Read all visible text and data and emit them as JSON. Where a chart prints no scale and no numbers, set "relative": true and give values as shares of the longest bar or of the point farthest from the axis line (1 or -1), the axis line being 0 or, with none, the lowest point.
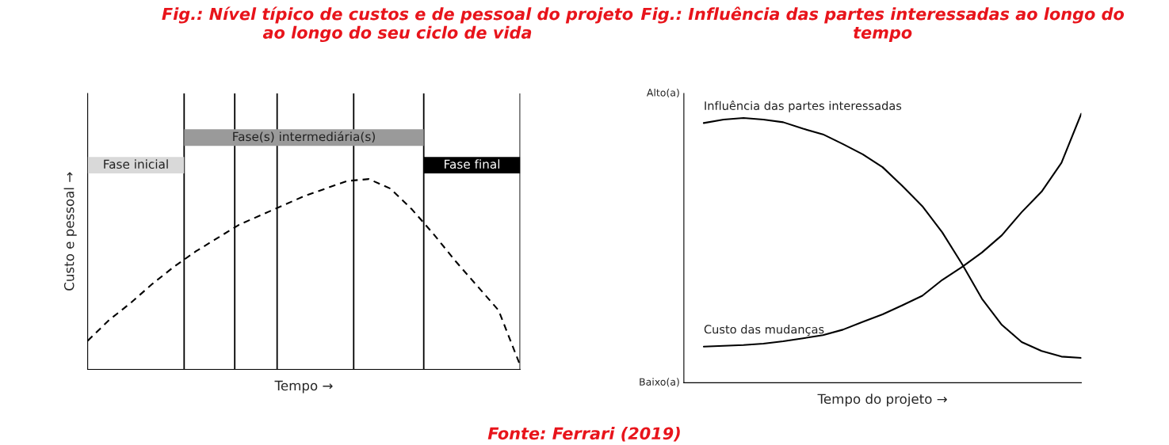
{
  "chart_data": [
    {
      "type": "line",
      "title": "Fig.: Nível típico de custos e de pessoal do projeto ao longo do seu ciclo de vida",
      "xlabel": "Tempo →",
      "ylabel": "Custo e pessoal →",
      "relative": true,
      "categories": [
        null,
        null,
        null,
        null,
        null,
        null,
        null,
        null,
        null,
        null,
        null,
        null,
        null,
        null,
        null,
        null,
        null,
        null,
        null,
        null,
        null
      ],
      "series": [
        {
          "color": "#000000",
          "line_style": "dashed",
          "values": [
            0.15,
            0.26,
            0.35,
            0.45,
            0.54,
            0.62,
            0.69,
            0.76,
            0.81,
            0.86,
            0.91,
            0.95,
            0.99,
            1.0,
            0.95,
            0.84,
            0.71,
            0.57,
            0.44,
            0.31,
            0.02
          ]
        }
      ],
      "annotations": [
        "Fase inicial",
        "Fase(s) intermediária(s)",
        "Fase final"
      ]
    },
    {
      "type": "line",
      "title": "Fig.: Influência das partes interessadas ao longo do tempo",
      "xlabel": "Tempo do projeto →",
      "relative": true,
      "categories": [
        null,
        null,
        null,
        null,
        null,
        null,
        null,
        null,
        null,
        null,
        null,
        null,
        null,
        null,
        null,
        null,
        null,
        null,
        null,
        null,
        null
      ],
      "series": [
        {
          "name": "Influência das partes interessadas",
          "color": "#000000",
          "line_style": "solid",
          "values": [
            null,
            0.965,
            0.978,
            0.984,
            0.978,
            0.968,
            0.944,
            0.923,
            0.887,
            0.849,
            0.801,
            0.731,
            0.656,
            0.559,
            0.441,
            0.312,
            0.215,
            0.151,
            0.118,
            0.097,
            0.092
          ]
        },
        {
          "name": "Custo das mudanças",
          "color": "#000000",
          "line_style": "solid",
          "values": [
            null,
            0.134,
            0.137,
            0.14,
            0.145,
            0.154,
            0.165,
            0.177,
            0.197,
            0.226,
            0.254,
            0.288,
            0.323,
            0.382,
            0.43,
            0.484,
            0.548,
            0.634,
            0.71,
            0.817,
            1.0
          ]
        }
      ],
      "annotations": [
        "Alto(a)",
        "Baixo(a)",
        "Fonte: Ferrari (2019)"
      ]
    }
  ]
}
